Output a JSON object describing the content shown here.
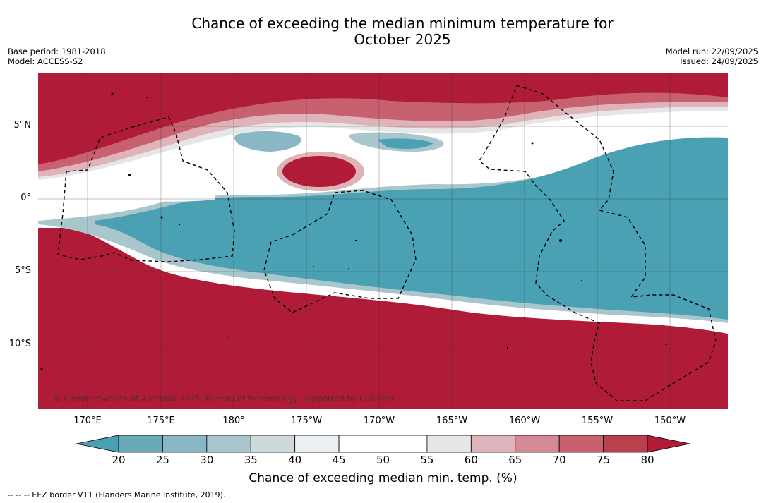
{
  "title_line1": "Chance of exceeding the median minimum temperature for",
  "title_line2": "October 2025",
  "base_period": "Base period: 1981-2018",
  "model": "Model: ACCESS-S2",
  "model_run": "Model run: 22/09/2025",
  "issued": "Issued: 24/09/2025",
  "copyright": "© Commonwealth of Australia 2025, Bureau of Meteorology, supported by COSPPac",
  "lat_labels": [
    "5°N",
    "0°",
    "5°S",
    "10°S"
  ],
  "lon_labels": [
    "170°E",
    "175°E",
    "180°",
    "175°W",
    "170°W",
    "165°W",
    "160°W",
    "155°W",
    "150°W"
  ],
  "colorbar": {
    "ticks": [
      "20",
      "25",
      "30",
      "35",
      "40",
      "45",
      "50",
      "55",
      "60",
      "65",
      "70",
      "75",
      "80"
    ],
    "label": "Chance of exceeding median min. temp. (%)",
    "colors": [
      "#4aa1b3",
      "#6aa9b8",
      "#89b7c3",
      "#a9c6cc",
      "#cdd9dc",
      "#eaf0f2",
      "#ffffff",
      "#ffffff",
      "#e6e6e6",
      "#deb3ba",
      "#d48a94",
      "#c7606f",
      "#b9404f",
      "#b01c37"
    ]
  },
  "footer": "-- -- -- EEZ border V11 (Flanders Marine Institute, 2019).",
  "palette": {
    "blue": "#4aa1b3",
    "red": "#b01c37"
  }
}
